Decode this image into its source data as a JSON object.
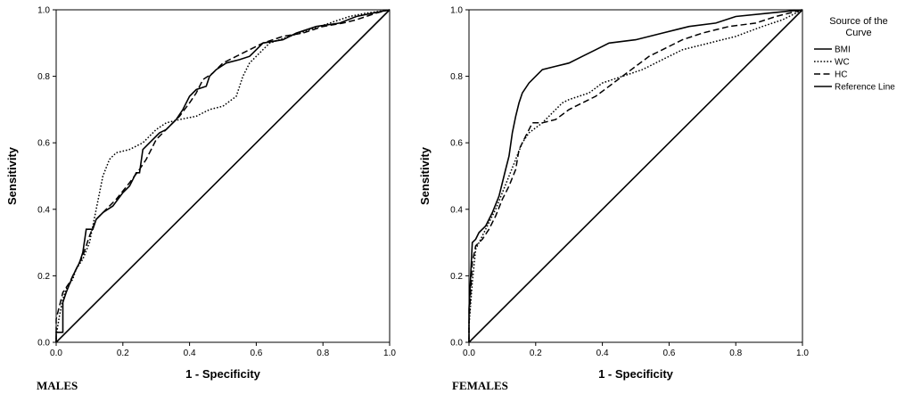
{
  "chart_data": [
    {
      "type": "line",
      "panel_label": "MALES",
      "xlabel": "1 - Specificity",
      "ylabel": "Sensitivity",
      "xlim": [
        0,
        1
      ],
      "ylim": [
        0,
        1
      ],
      "xticks": [
        "0.0",
        "0.2",
        "0.4",
        "0.6",
        "0.8",
        "1.0"
      ],
      "yticks": [
        "0.0",
        "0.2",
        "0.4",
        "0.6",
        "0.8",
        "1.0"
      ],
      "grid": false,
      "series": [
        {
          "name": "BMI",
          "style": "solid",
          "points": [
            [
              0,
              0
            ],
            [
              0,
              0.03
            ],
            [
              0.02,
              0.03
            ],
            [
              0.02,
              0.12
            ],
            [
              0.03,
              0.15
            ],
            [
              0.05,
              0.2
            ],
            [
              0.07,
              0.24
            ],
            [
              0.08,
              0.27
            ],
            [
              0.09,
              0.34
            ],
            [
              0.11,
              0.34
            ],
            [
              0.12,
              0.37
            ],
            [
              0.14,
              0.39
            ],
            [
              0.17,
              0.41
            ],
            [
              0.2,
              0.45
            ],
            [
              0.22,
              0.47
            ],
            [
              0.24,
              0.51
            ],
            [
              0.25,
              0.51
            ],
            [
              0.26,
              0.58
            ],
            [
              0.28,
              0.6
            ],
            [
              0.31,
              0.63
            ],
            [
              0.33,
              0.64
            ],
            [
              0.36,
              0.67
            ],
            [
              0.38,
              0.7
            ],
            [
              0.4,
              0.74
            ],
            [
              0.42,
              0.76
            ],
            [
              0.45,
              0.77
            ],
            [
              0.46,
              0.8
            ],
            [
              0.48,
              0.82
            ],
            [
              0.51,
              0.84
            ],
            [
              0.55,
              0.85
            ],
            [
              0.58,
              0.86
            ],
            [
              0.6,
              0.88
            ],
            [
              0.62,
              0.9
            ],
            [
              0.68,
              0.91
            ],
            [
              0.72,
              0.93
            ],
            [
              0.78,
              0.95
            ],
            [
              0.85,
              0.96
            ],
            [
              0.9,
              0.98
            ],
            [
              0.95,
              0.99
            ],
            [
              1,
              1
            ]
          ]
        },
        {
          "name": "WC",
          "style": "dotted",
          "points": [
            [
              0,
              0
            ],
            [
              0,
              0.02
            ],
            [
              0.01,
              0.08
            ],
            [
              0.02,
              0.13
            ],
            [
              0.03,
              0.16
            ],
            [
              0.05,
              0.19
            ],
            [
              0.06,
              0.22
            ],
            [
              0.08,
              0.25
            ],
            [
              0.1,
              0.3
            ],
            [
              0.12,
              0.4
            ],
            [
              0.14,
              0.5
            ],
            [
              0.16,
              0.55
            ],
            [
              0.18,
              0.57
            ],
            [
              0.22,
              0.58
            ],
            [
              0.26,
              0.6
            ],
            [
              0.3,
              0.64
            ],
            [
              0.33,
              0.66
            ],
            [
              0.37,
              0.67
            ],
            [
              0.42,
              0.68
            ],
            [
              0.46,
              0.7
            ],
            [
              0.5,
              0.71
            ],
            [
              0.54,
              0.74
            ],
            [
              0.56,
              0.8
            ],
            [
              0.58,
              0.84
            ],
            [
              0.6,
              0.86
            ],
            [
              0.64,
              0.9
            ],
            [
              0.7,
              0.92
            ],
            [
              0.76,
              0.94
            ],
            [
              0.82,
              0.96
            ],
            [
              0.88,
              0.98
            ],
            [
              0.93,
              0.99
            ],
            [
              1,
              1
            ]
          ]
        },
        {
          "name": "HC",
          "style": "dashed",
          "points": [
            [
              0,
              0
            ],
            [
              0,
              0.07
            ],
            [
              0.02,
              0.15
            ],
            [
              0.04,
              0.18
            ],
            [
              0.06,
              0.22
            ],
            [
              0.08,
              0.26
            ],
            [
              0.1,
              0.32
            ],
            [
              0.12,
              0.37
            ],
            [
              0.15,
              0.4
            ],
            [
              0.18,
              0.43
            ],
            [
              0.22,
              0.48
            ],
            [
              0.25,
              0.52
            ],
            [
              0.27,
              0.55
            ],
            [
              0.3,
              0.61
            ],
            [
              0.34,
              0.65
            ],
            [
              0.37,
              0.68
            ],
            [
              0.4,
              0.72
            ],
            [
              0.42,
              0.75
            ],
            [
              0.44,
              0.79
            ],
            [
              0.47,
              0.81
            ],
            [
              0.5,
              0.84
            ],
            [
              0.54,
              0.86
            ],
            [
              0.58,
              0.88
            ],
            [
              0.62,
              0.9
            ],
            [
              0.68,
              0.92
            ],
            [
              0.74,
              0.93
            ],
            [
              0.8,
              0.95
            ],
            [
              0.86,
              0.96
            ],
            [
              0.9,
              0.97
            ],
            [
              0.96,
              0.99
            ],
            [
              1,
              1
            ]
          ]
        },
        {
          "name": "Reference Line",
          "style": "solid",
          "points": [
            [
              0,
              0
            ],
            [
              1,
              1
            ]
          ]
        }
      ]
    },
    {
      "type": "line",
      "panel_label": "FEMALES",
      "xlabel": "1 - Specificity",
      "ylabel": "Sensitivity",
      "xlim": [
        0,
        1
      ],
      "ylim": [
        0,
        1
      ],
      "xticks": [
        "0.0",
        "0.2",
        "0.4",
        "0.6",
        "0.8",
        "1.0"
      ],
      "yticks": [
        "0.0",
        "0.2",
        "0.4",
        "0.6",
        "0.8",
        "1.0"
      ],
      "grid": false,
      "series": [
        {
          "name": "BMI",
          "style": "solid",
          "points": [
            [
              0,
              0
            ],
            [
              0,
              0.1
            ],
            [
              0.01,
              0.3
            ],
            [
              0.02,
              0.31
            ],
            [
              0.03,
              0.33
            ],
            [
              0.05,
              0.35
            ],
            [
              0.07,
              0.39
            ],
            [
              0.09,
              0.44
            ],
            [
              0.1,
              0.48
            ],
            [
              0.11,
              0.52
            ],
            [
              0.12,
              0.56
            ],
            [
              0.13,
              0.63
            ],
            [
              0.14,
              0.68
            ],
            [
              0.15,
              0.72
            ],
            [
              0.16,
              0.75
            ],
            [
              0.18,
              0.78
            ],
            [
              0.2,
              0.8
            ],
            [
              0.22,
              0.82
            ],
            [
              0.26,
              0.83
            ],
            [
              0.3,
              0.84
            ],
            [
              0.34,
              0.86
            ],
            [
              0.38,
              0.88
            ],
            [
              0.42,
              0.9
            ],
            [
              0.5,
              0.91
            ],
            [
              0.58,
              0.93
            ],
            [
              0.66,
              0.95
            ],
            [
              0.74,
              0.96
            ],
            [
              0.8,
              0.98
            ],
            [
              0.9,
              0.99
            ],
            [
              1,
              1
            ]
          ]
        },
        {
          "name": "WC",
          "style": "dotted",
          "points": [
            [
              0,
              0
            ],
            [
              0,
              0.05
            ],
            [
              0.01,
              0.18
            ],
            [
              0.02,
              0.28
            ],
            [
              0.04,
              0.32
            ],
            [
              0.06,
              0.36
            ],
            [
              0.08,
              0.4
            ],
            [
              0.1,
              0.45
            ],
            [
              0.12,
              0.5
            ],
            [
              0.14,
              0.55
            ],
            [
              0.16,
              0.6
            ],
            [
              0.18,
              0.63
            ],
            [
              0.22,
              0.66
            ],
            [
              0.26,
              0.7
            ],
            [
              0.28,
              0.72
            ],
            [
              0.3,
              0.73
            ],
            [
              0.36,
              0.75
            ],
            [
              0.4,
              0.78
            ],
            [
              0.46,
              0.8
            ],
            [
              0.52,
              0.82
            ],
            [
              0.58,
              0.85
            ],
            [
              0.64,
              0.88
            ],
            [
              0.72,
              0.9
            ],
            [
              0.8,
              0.92
            ],
            [
              0.88,
              0.95
            ],
            [
              0.94,
              0.97
            ],
            [
              1,
              1
            ]
          ]
        },
        {
          "name": "HC",
          "style": "dashed",
          "points": [
            [
              0,
              0
            ],
            [
              0,
              0.06
            ],
            [
              0.01,
              0.24
            ],
            [
              0.02,
              0.29
            ],
            [
              0.04,
              0.31
            ],
            [
              0.06,
              0.34
            ],
            [
              0.08,
              0.38
            ],
            [
              0.1,
              0.43
            ],
            [
              0.12,
              0.47
            ],
            [
              0.14,
              0.52
            ],
            [
              0.15,
              0.58
            ],
            [
              0.17,
              0.62
            ],
            [
              0.19,
              0.66
            ],
            [
              0.22,
              0.66
            ],
            [
              0.26,
              0.67
            ],
            [
              0.3,
              0.7
            ],
            [
              0.34,
              0.72
            ],
            [
              0.38,
              0.74
            ],
            [
              0.42,
              0.77
            ],
            [
              0.46,
              0.8
            ],
            [
              0.5,
              0.83
            ],
            [
              0.54,
              0.86
            ],
            [
              0.58,
              0.88
            ],
            [
              0.64,
              0.91
            ],
            [
              0.7,
              0.93
            ],
            [
              0.78,
              0.95
            ],
            [
              0.86,
              0.96
            ],
            [
              0.92,
              0.98
            ],
            [
              1,
              1
            ]
          ]
        },
        {
          "name": "Reference Line",
          "style": "solid",
          "points": [
            [
              0,
              0
            ],
            [
              1,
              1
            ]
          ]
        }
      ]
    }
  ],
  "legend": {
    "title_line1": "Source of the",
    "title_line2": "Curve",
    "placement": "right",
    "items": [
      {
        "label": "BMI",
        "style": "solid"
      },
      {
        "label": "WC",
        "style": "dotted"
      },
      {
        "label": "HC",
        "style": "dashed"
      },
      {
        "label": "Reference Line",
        "style": "solid"
      }
    ]
  }
}
